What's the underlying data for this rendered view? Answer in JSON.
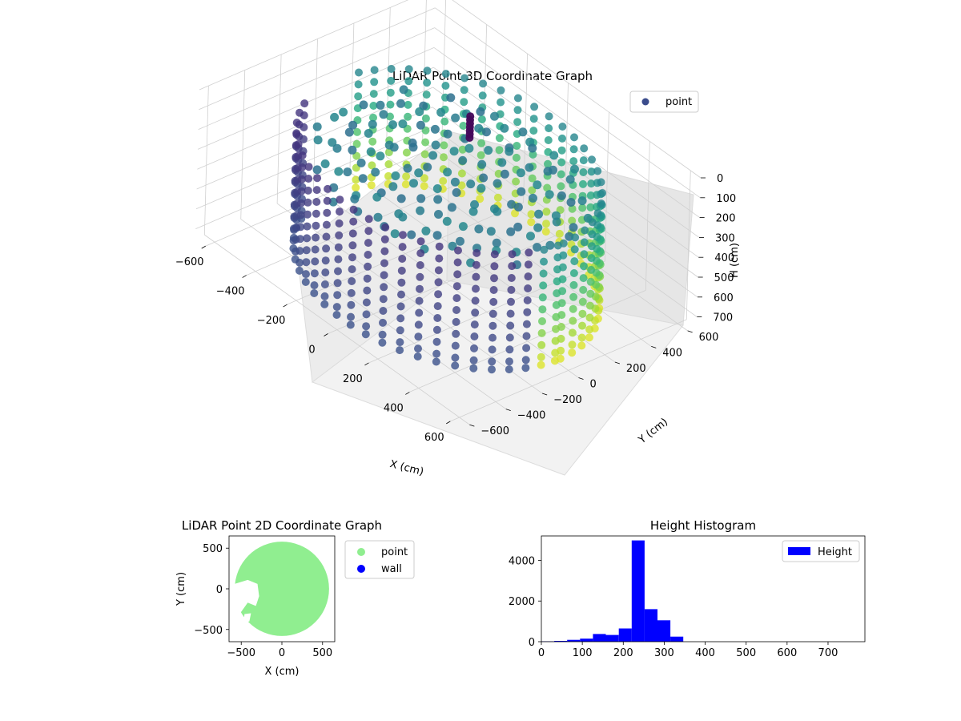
{
  "chart_data": [
    {
      "type": "scatter",
      "title": "LiDAR Point 3D Coordinate Graph",
      "xlabel": "X (cm)",
      "ylabel": "Y (cm)",
      "zlabel": "H (cm)",
      "xlim": [
        -650,
        650
      ],
      "ylim": [
        -650,
        650
      ],
      "zlim": [
        0,
        750
      ],
      "z_inverted": true,
      "x_ticks": [
        -600,
        -400,
        -200,
        0,
        200,
        400,
        600
      ],
      "y_ticks": [
        -600,
        -400,
        -200,
        0,
        200,
        400,
        600
      ],
      "z_ticks": [
        0,
        100,
        200,
        300,
        400,
        500,
        600,
        700
      ],
      "legend": {
        "placement": "upper-right",
        "entries": [
          {
            "label": "point",
            "color": "#3b4c8c"
          }
        ]
      },
      "colormap": "viridis",
      "grid": true,
      "wall": {
        "radius_cm": 560,
        "z_top_cm": 130,
        "z_bottom_cm": 720,
        "rings_z_cm": [
          140,
          200,
          260,
          320,
          380,
          440,
          500,
          560,
          620,
          680,
          720
        ],
        "missing_sector_deg": [
          175,
          200
        ]
      },
      "floor_height_cm": 220,
      "pillar": {
        "x_cm": -130,
        "y_cm": 260,
        "z_top_cm": 110,
        "z_bottom_cm": 220
      }
    },
    {
      "type": "scatter",
      "title": "LiDAR Point 2D Coordinate Graph",
      "xlabel": "X (cm)",
      "ylabel": "Y (cm)",
      "xlim": [
        -650,
        650
      ],
      "ylim": [
        -650,
        650
      ],
      "x_ticks": [
        -500,
        0,
        500
      ],
      "y_ticks": [
        -500,
        0,
        500
      ],
      "legend": {
        "placement": "outside-right",
        "entries": [
          {
            "label": "point",
            "color": "#90ee90"
          },
          {
            "label": "wall",
            "color": "#0000ff"
          }
        ]
      },
      "disk": {
        "center": [
          0,
          0
        ],
        "radius_cm": 580,
        "color": "#90ee90",
        "cutout_side": "left"
      }
    },
    {
      "type": "bar",
      "title": "Height Histogram",
      "xlabel": "",
      "ylabel": "",
      "xlim": [
        0,
        790
      ],
      "ylim": [
        0,
        5200
      ],
      "x_ticks": [
        0,
        100,
        200,
        300,
        400,
        500,
        600,
        700
      ],
      "y_ticks": [
        0,
        2000,
        4000
      ],
      "legend": {
        "placement": "upper-right",
        "entries": [
          {
            "label": "Height",
            "color": "#0000ff"
          }
        ]
      },
      "bin_width": 31.5,
      "bins_start": [
        0,
        31.5,
        63,
        94.5,
        126,
        157.5,
        189,
        220.5,
        252,
        283.5,
        315,
        346.5,
        378,
        409.5,
        441,
        472.5,
        504,
        535.5,
        567,
        598.5,
        630,
        661.5,
        693,
        724.5,
        756
      ],
      "counts": [
        20,
        40,
        90,
        150,
        380,
        330,
        650,
        4980,
        1600,
        1050,
        250,
        0,
        0,
        0,
        0,
        0,
        0,
        0,
        0,
        0,
        0,
        0,
        0,
        0,
        0
      ],
      "color": "#0000ff"
    }
  ]
}
